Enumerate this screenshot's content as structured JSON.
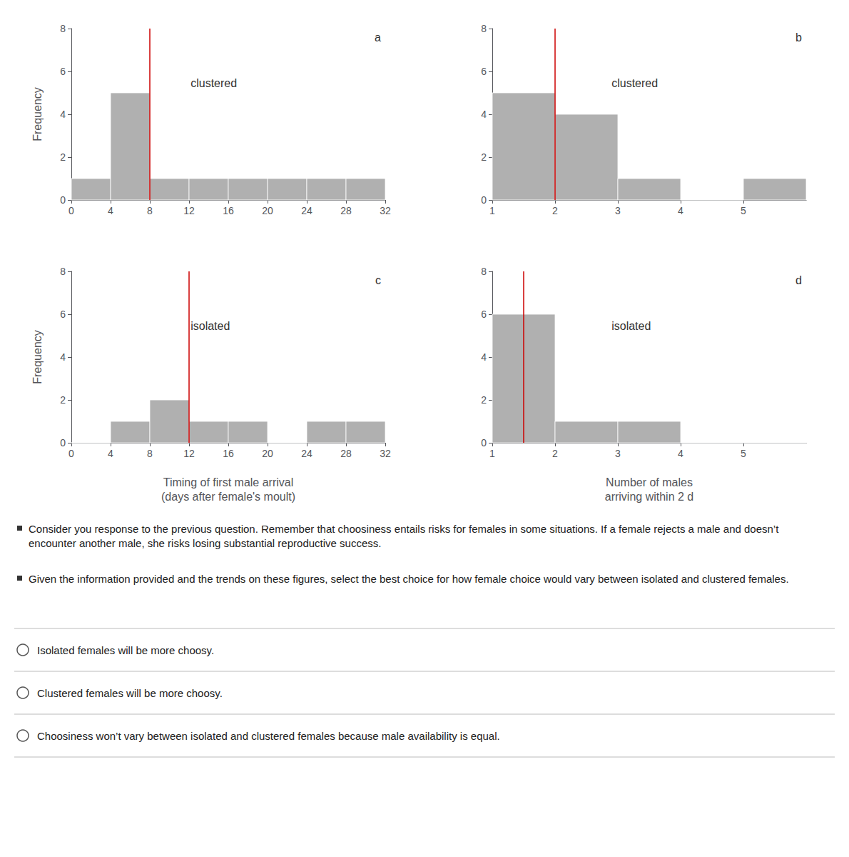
{
  "chart_data": [
    {
      "type": "histogram",
      "bins": [
        0,
        4,
        8,
        12,
        16,
        20,
        24,
        28,
        32
      ],
      "values": [
        1,
        5,
        1,
        1,
        1,
        1,
        1,
        1
      ],
      "color": "#b0b0b0",
      "reference_line": {
        "x": 8,
        "color": "#cc0000"
      },
      "annotation": "clustered",
      "panel": "a",
      "xlim": [
        0,
        32
      ],
      "xticks": [
        0,
        4,
        8,
        12,
        16,
        20,
        24,
        28,
        32
      ],
      "ylim": [
        0,
        8
      ],
      "yticks": [
        0,
        2,
        4,
        6,
        8
      ],
      "ylabel": "Frequency",
      "grid": false
    },
    {
      "type": "histogram",
      "bins": [
        1,
        2,
        3,
        4,
        5,
        6
      ],
      "values": [
        5,
        4,
        1,
        0,
        1
      ],
      "color": "#b0b0b0",
      "reference_line": {
        "x": 2.0,
        "color": "#cc0000"
      },
      "annotation": "clustered",
      "panel": "b",
      "xlim": [
        1,
        6
      ],
      "xticks": [
        1,
        2,
        3,
        4,
        5
      ],
      "ylim": [
        0,
        8
      ],
      "yticks": [
        0,
        2,
        4,
        6,
        8
      ],
      "grid": false
    },
    {
      "type": "histogram",
      "bins": [
        0,
        4,
        8,
        12,
        16,
        20,
        24,
        28,
        32
      ],
      "values": [
        0,
        1,
        2,
        1,
        1,
        0,
        1,
        1
      ],
      "color": "#b0b0b0",
      "reference_line": {
        "x": 12,
        "color": "#cc0000"
      },
      "annotation": "isolated",
      "panel": "c",
      "xlim": [
        0,
        32
      ],
      "xticks": [
        0,
        4,
        8,
        12,
        16,
        20,
        24,
        28,
        32
      ],
      "ylim": [
        0,
        8
      ],
      "yticks": [
        0,
        2,
        4,
        6,
        8
      ],
      "ylabel": "Frequency",
      "xlabel": "Timing of first male arrival\n(days after female's moult)",
      "grid": false
    },
    {
      "type": "histogram",
      "bins": [
        1,
        2,
        3,
        4,
        5,
        6
      ],
      "values": [
        6,
        1,
        1,
        0,
        0
      ],
      "color": "#b0b0b0",
      "reference_line": {
        "x": 1.5,
        "color": "#cc0000"
      },
      "annotation": "isolated",
      "panel": "d",
      "xlim": [
        1,
        6
      ],
      "xticks": [
        1,
        2,
        3,
        4,
        5
      ],
      "ylim": [
        0,
        8
      ],
      "yticks": [
        0,
        2,
        4,
        6,
        8
      ],
      "xlabel": "Number of males\narriving within 2 d",
      "grid": false
    }
  ],
  "bullets": [
    "Consider you response to the previous question. Remember that choosiness entails risks for females in some situations. If a female rejects a male and doesn’t encounter another male, she risks losing substantial reproductive success.",
    "Given the information provided and the trends on these figures, select the best choice for how female choice would vary between isolated and clustered females."
  ],
  "choices": [
    "Isolated females will be more choosy.",
    "Clustered females will be more choosy.",
    "Choosiness won’t vary between isolated and clustered females because male availability is equal."
  ]
}
